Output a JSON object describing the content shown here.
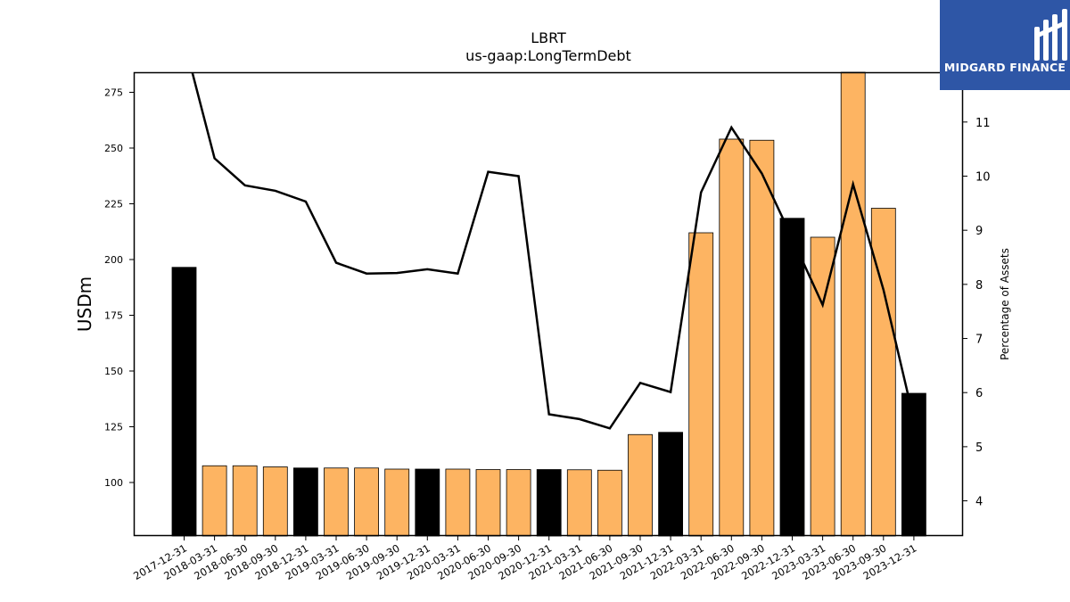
{
  "brand": {
    "name": "MIDGARD FINANCE",
    "bg_color": "#2e56a6"
  },
  "chart_data": {
    "type": "bar",
    "title": "LBRT",
    "subtitle": "us-gaap:LongTermDebt",
    "ylabel": "USDm",
    "y2label": "Percentage of Assets",
    "ylim": [
      76,
      284
    ],
    "y2lim": [
      3.35,
      11.92
    ],
    "yticks": [
      100,
      125,
      150,
      175,
      200,
      225,
      250,
      275
    ],
    "y2ticks": [
      4,
      5,
      6,
      7,
      8,
      9,
      10,
      11
    ],
    "categories": [
      "2017-12-31",
      "2018-03-31",
      "2018-06-30",
      "2018-09-30",
      "2018-12-31",
      "2019-03-31",
      "2019-06-30",
      "2019-09-30",
      "2019-12-31",
      "2020-03-31",
      "2020-06-30",
      "2020-09-30",
      "2020-12-31",
      "2021-03-31",
      "2021-06-30",
      "2021-09-30",
      "2021-12-31",
      "2022-03-31",
      "2022-06-30",
      "2022-09-30",
      "2022-12-31",
      "2023-03-31",
      "2023-06-30",
      "2023-09-30",
      "2023-12-31"
    ],
    "series": [
      {
        "kind": "bar",
        "values": [
          196.5,
          107.5,
          107.5,
          107,
          106.5,
          106.5,
          106.5,
          106,
          106,
          106,
          105.8,
          105.8,
          105.8,
          105.7,
          105.5,
          121.5,
          122.5,
          212,
          254,
          253.5,
          218.5,
          210,
          284,
          223,
          140
        ]
      },
      {
        "kind": "line",
        "axis": "right",
        "color": "#000000",
        "values": [
          12.5,
          10.33,
          9.83,
          9.73,
          9.53,
          8.4,
          8.2,
          8.21,
          8.28,
          8.2,
          10.08,
          10.0,
          5.6,
          5.51,
          5.34,
          6.18,
          6.01,
          9.7,
          10.9,
          10.05,
          8.85,
          7.62,
          9.85,
          7.9,
          5.5
        ]
      }
    ],
    "colors": {
      "quarter_bar": "#fdb462",
      "year_end_bar": "#000000",
      "line": "#000000"
    },
    "grid": false,
    "legend": "none"
  }
}
